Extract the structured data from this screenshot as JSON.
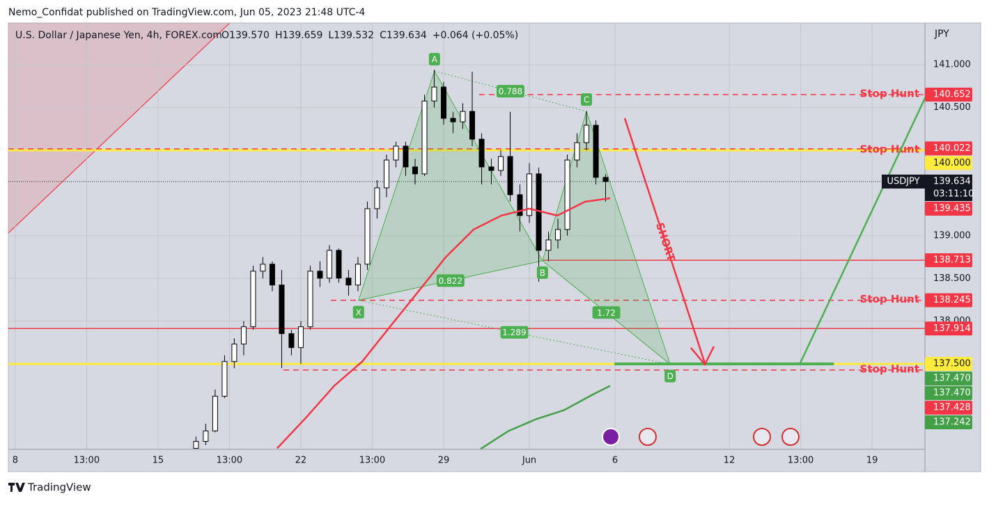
{
  "header": {
    "title": "Nemo_Confidat published on TradingView.com, Jun 05, 2023 21:48 UTC-4"
  },
  "footer": {
    "brand": "TradingView"
  },
  "chart_data": {
    "type": "candlestick",
    "title": "U.S. Dollar / Japanese Yen, 4h, FOREX.com",
    "legend_items": [
      {
        "key": "O",
        "text": "139.570"
      },
      {
        "key": "H",
        "text": "139.659"
      },
      {
        "key": "L",
        "text": "139.532"
      },
      {
        "key": "C",
        "text": "139.634"
      },
      {
        "key": "",
        "text": "+0.064 (+0.05%)"
      }
    ],
    "y_unit": "JPY",
    "up_color": "#ffffff",
    "down_color": "#000000",
    "x": [
      6.33,
      6.67,
      7,
      7.33,
      7.67,
      8,
      8.33,
      8.67,
      9,
      9.33,
      9.67,
      10,
      10.33,
      10.67,
      11,
      11.33,
      11.67,
      12,
      12.33,
      12.67,
      13,
      13.33,
      13.67,
      14,
      14.33,
      14.67,
      15,
      15.33,
      15.67,
      16,
      16.33,
      16.67,
      17,
      17.33,
      17.67,
      18,
      18.33,
      18.67,
      19,
      19.33,
      19.67,
      20,
      20.33,
      20.67
    ],
    "open": [
      136.512,
      136.593,
      136.715,
      137.122,
      137.528,
      137.732,
      137.935,
      138.585,
      138.667,
      138.423,
      137.854,
      137.691,
      137.935,
      138.585,
      138.504,
      138.829,
      138.504,
      138.423,
      138.667,
      139.317,
      139.561,
      139.886,
      140.049,
      139.805,
      139.724,
      140.577,
      140.74,
      140.374,
      140.333,
      140.455,
      140.13,
      139.805,
      139.764,
      139.927,
      139.48,
      139.236,
      139.724,
      138.829,
      138.951,
      139.073,
      139.886,
      140.089,
      140.293,
      139.683
    ],
    "high": [
      136.65,
      136.8,
      137.2,
      137.6,
      137.8,
      138,
      138.65,
      138.75,
      138.7,
      138.6,
      137.9,
      138,
      138.65,
      138.7,
      138.89,
      138.85,
      138.6,
      138.75,
      139.4,
      139.65,
      139.95,
      140.1,
      140.1,
      139.9,
      140.65,
      140.943,
      140.8,
      140.45,
      140.55,
      140.92,
      140.2,
      139.9,
      140,
      140.45,
      139.6,
      139.85,
      139.8,
      139.05,
      139.2,
      139.95,
      140.2,
      140.46,
      140.35,
      139.72
    ],
    "low": [
      136.51,
      136.55,
      136.7,
      137.1,
      137.45,
      137.6,
      137.9,
      138.5,
      138.35,
      137.45,
      137.6,
      137.5,
      137.9,
      138.4,
      138.45,
      138.45,
      138.3,
      138.35,
      138.6,
      139.2,
      139.45,
      139.8,
      139.7,
      139.6,
      139.7,
      140.5,
      140.3,
      140.2,
      140.25,
      140.05,
      139.6,
      139.6,
      139.7,
      139.4,
      139.05,
      139.15,
      138.463,
      138.7,
      138.85,
      139,
      139.8,
      140,
      139.6,
      139.4
    ],
    "close": [
      136.593,
      136.715,
      137.122,
      137.528,
      137.732,
      137.935,
      138.585,
      138.667,
      138.423,
      137.854,
      137.691,
      137.935,
      138.585,
      138.504,
      138.829,
      138.504,
      138.423,
      138.667,
      139.317,
      139.561,
      139.886,
      140.049,
      139.805,
      139.724,
      140.577,
      140.74,
      140.374,
      140.333,
      140.455,
      140.13,
      139.805,
      139.764,
      139.927,
      139.48,
      139.236,
      139.724,
      138.829,
      138.951,
      139.073,
      139.886,
      140.089,
      140.293,
      139.683,
      139.634
    ],
    "moving_averages": [
      {
        "color": "#f23645",
        "x": [
          9.17,
          10.2,
          11.17,
          12.15,
          13.12,
          14.1,
          15.07,
          16.05,
          17.02,
          18,
          18.98,
          19.95,
          20.83
        ],
        "values": [
          136.512,
          136.878,
          137.244,
          137.528,
          137.935,
          138.341,
          138.748,
          139.073,
          139.236,
          139.317,
          139.236,
          139.398,
          139.439
        ]
      },
      {
        "color": "#43a047",
        "x": [
          16.29,
          17.27,
          18.24,
          19.22,
          20.2,
          20.83
        ],
        "values": [
          136.504,
          136.715,
          136.854,
          136.959,
          137.138,
          137.244
        ]
      }
    ],
    "pattern": {
      "color": "#4caf50",
      "points": [
        {
          "label": "X",
          "x": 12.02,
          "y": 138.244
        },
        {
          "label": "A",
          "x": 14.68,
          "y": 140.927
        },
        {
          "label": "B",
          "x": 18.46,
          "y": 138.707
        },
        {
          "label": "C",
          "x": 20,
          "y": 140.455
        },
        {
          "label": "D",
          "x": 22.93,
          "y": 137.496
        }
      ],
      "ratios": [
        0.788,
        0.822,
        1.72,
        1.289
      ]
    },
    "levels": [
      {
        "value": 140.652,
        "color": "#f23645",
        "style": "dashed",
        "from": 16.24,
        "label": "Stop Hunt"
      },
      {
        "value": 140,
        "color": "#ffeb3b",
        "style": "solid",
        "label": "Stop Hunt"
      },
      {
        "value": 138.713,
        "color": "#f23645",
        "style": "solid",
        "from": 18.49
      },
      {
        "value": 138.245,
        "color": "#f23645",
        "style": "dashed",
        "from": 11.05,
        "label": "Stop Hunt"
      },
      {
        "value": 137.914,
        "color": "#f23645",
        "style": "solid"
      },
      {
        "value": 137.5,
        "color": "#ffeb3b",
        "style": "solid"
      },
      {
        "value": 137.428,
        "color": "#f23645",
        "style": "dashed",
        "from": 9.39,
        "label": "Stop Hunt"
      }
    ],
    "target": {
      "value": 137.5,
      "from": 20.98,
      "to": 28.66,
      "color": "#4caf50"
    },
    "annotation": "SHORT",
    "last_price": {
      "value": 139.634,
      "label": "139.634",
      "symbol": "USDJPY",
      "countdown": "03:11:10"
    },
    "price_labels": [
      {
        "value": 140.652,
        "label": "140.652",
        "color": "#f23645"
      },
      {
        "value": 140.022,
        "label": "140.022",
        "color": "#f23645"
      },
      {
        "value": 140,
        "label": "140.000",
        "color": "#ffeb3b"
      },
      {
        "value": 139.435,
        "label": "139.435",
        "color": "#f23645"
      },
      {
        "value": 138.713,
        "label": "138.713",
        "color": "#f23645"
      },
      {
        "value": 138.245,
        "label": "138.245",
        "color": "#f23645"
      },
      {
        "value": 137.914,
        "label": "137.914",
        "color": "#f23645"
      },
      {
        "value": 137.5,
        "label": "137.500",
        "color": "#ffeb3b"
      },
      {
        "value": 137.47,
        "label": "137.470",
        "color": "#43a047"
      },
      {
        "value": 137.47,
        "label": "137.470",
        "color": "#43a047"
      },
      {
        "value": 137.428,
        "label": "137.428",
        "color": "#f23645"
      },
      {
        "value": 137.242,
        "label": "137.242",
        "color": "#43a047"
      }
    ],
    "xlim": [
      -0.24,
      31.85
    ],
    "ylim": [
      136.5,
      141.49
    ],
    "xticks": [
      {
        "value": 0,
        "label": "8"
      },
      {
        "value": 2.5,
        "label": "13:00"
      },
      {
        "value": 5,
        "label": "15"
      },
      {
        "value": 7.5,
        "label": "13:00"
      },
      {
        "value": 10,
        "label": "22"
      },
      {
        "value": 12.5,
        "label": "13:00"
      },
      {
        "value": 15,
        "label": "29"
      },
      {
        "value": 18,
        "label": "Jun"
      },
      {
        "value": 21,
        "label": "6"
      },
      {
        "value": 25,
        "label": "12"
      },
      {
        "value": 27.5,
        "label": "13:00"
      },
      {
        "value": 30,
        "label": "19"
      }
    ],
    "yticks": [
      {
        "value": 141,
        "label": "141.000"
      },
      {
        "value": 140.5,
        "label": "140.500"
      },
      {
        "value": 139,
        "label": "139.000"
      },
      {
        "value": 138.5,
        "label": "138.500"
      },
      {
        "value": 138,
        "label": "138.000"
      }
    ],
    "grid": true
  }
}
